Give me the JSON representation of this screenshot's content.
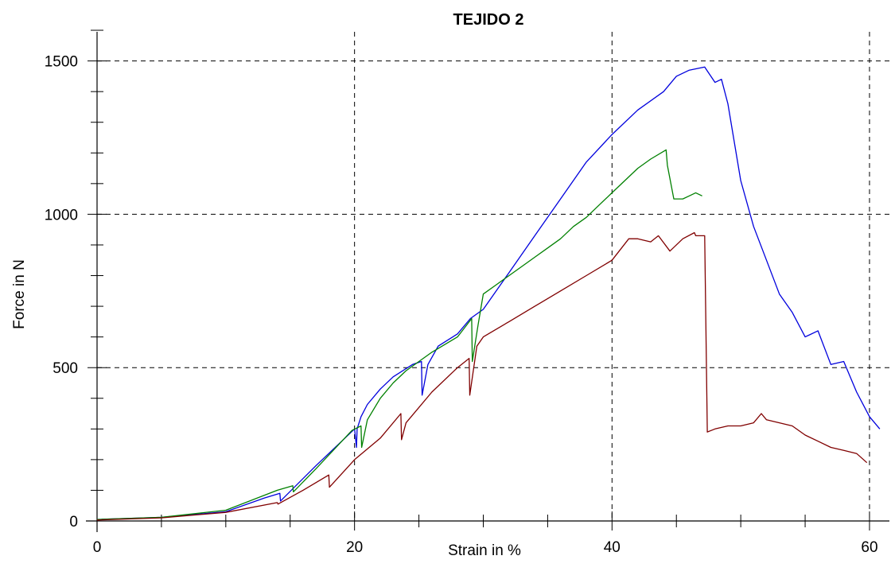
{
  "chart_data": {
    "type": "line",
    "title": "TEJIDO 2",
    "xlabel": "Strain in %",
    "ylabel": "Force in N",
    "xlim": [
      0,
      61
    ],
    "ylim": [
      0,
      1600
    ],
    "x_ticks": [
      0,
      20,
      40,
      60
    ],
    "x_tick_labels": [
      "0",
      "20",
      "40",
      "60"
    ],
    "y_ticks": [
      0,
      500,
      1000,
      1500
    ],
    "y_tick_labels": [
      "0",
      "500",
      "1000",
      "1500"
    ],
    "grid": "dashed at major ticks",
    "legend": "none",
    "series": [
      {
        "color": "#0000dd",
        "x": [
          0,
          5,
          10,
          13,
          14.2,
          14.25,
          17,
          20,
          20.15,
          20.2,
          20.5,
          21,
          22,
          23,
          24.5,
          25.2,
          25.25,
          25.7,
          26.5,
          28,
          29,
          30,
          32,
          34,
          36,
          38,
          40,
          42,
          44,
          45,
          46,
          47.2,
          48,
          48.5,
          49,
          50,
          51,
          52,
          53,
          54,
          55,
          56,
          57,
          58,
          59,
          60,
          60.8
        ],
        "y": [
          5,
          12,
          30,
          75,
          90,
          65,
          180,
          300,
          240,
          300,
          340,
          380,
          430,
          470,
          510,
          520,
          410,
          510,
          570,
          610,
          660,
          690,
          810,
          930,
          1050,
          1170,
          1260,
          1340,
          1400,
          1450,
          1470,
          1480,
          1430,
          1440,
          1360,
          1110,
          960,
          850,
          740,
          680,
          600,
          620,
          510,
          520,
          420,
          340,
          300
        ]
      },
      {
        "color": "#008000",
        "x": [
          0,
          5,
          10,
          14,
          15.2,
          15.25,
          17,
          19.8,
          20.5,
          20.55,
          21,
          22,
          23,
          24,
          25,
          26,
          28,
          29.1,
          29.15,
          29.6,
          30,
          31,
          32,
          33,
          34,
          35,
          36,
          37,
          38,
          39,
          40,
          41,
          42,
          43,
          44.2,
          44.3,
          44.8,
          45.5,
          46,
          46.5,
          47
        ],
        "y": [
          5,
          12,
          35,
          100,
          115,
          95,
          170,
          295,
          310,
          240,
          330,
          400,
          450,
          490,
          520,
          550,
          600,
          660,
          520,
          640,
          740,
          770,
          800,
          830,
          860,
          890,
          920,
          960,
          990,
          1030,
          1070,
          1110,
          1150,
          1180,
          1210,
          1160,
          1050,
          1050,
          1060,
          1070,
          1060
        ]
      },
      {
        "color": "#800000",
        "x": [
          0,
          5,
          10,
          14,
          14.05,
          16,
          18,
          18.05,
          20,
          22,
          23.6,
          23.65,
          24,
          26,
          28,
          28.9,
          28.95,
          29.5,
          30,
          32,
          34,
          36,
          38,
          40,
          41.3,
          42,
          43,
          43.6,
          44.5,
          45.5,
          46.4,
          46.5,
          47.2,
          47.4,
          48,
          49,
          50,
          51,
          51.6,
          52,
          53,
          54,
          55,
          56,
          57,
          58,
          59,
          59.8
        ],
        "y": [
          3,
          10,
          28,
          60,
          55,
          100,
          150,
          110,
          200,
          270,
          350,
          265,
          320,
          420,
          500,
          530,
          410,
          570,
          600,
          650,
          700,
          750,
          800,
          850,
          920,
          920,
          910,
          930,
          880,
          920,
          940,
          930,
          930,
          290,
          300,
          310,
          310,
          320,
          350,
          330,
          320,
          310,
          280,
          260,
          240,
          230,
          220,
          190
        ]
      }
    ]
  }
}
